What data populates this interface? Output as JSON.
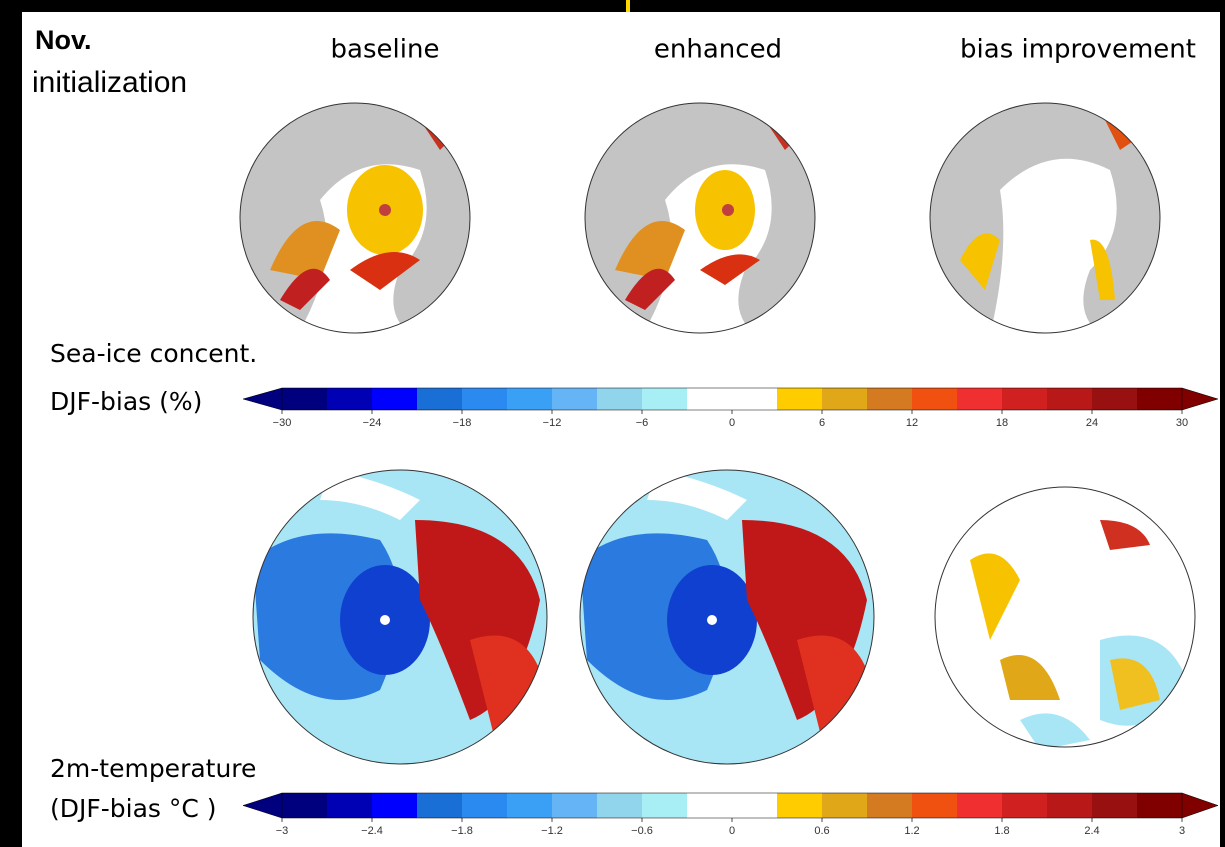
{
  "header": {
    "title": "Nov.",
    "subtitle": "initialization"
  },
  "columns": [
    "baseline",
    "enhanced",
    "bias improvement"
  ],
  "columns_highlight_color": "#e00000",
  "colorbar_colors": [
    "#00007f",
    "#0000b4",
    "#0000ff",
    "#1a6fd6",
    "#2a8af0",
    "#3aa0f5",
    "#65b4f5",
    "#90d5ec",
    "#a8eef5",
    "#ffffff",
    "#ffffff",
    "#ffcc00",
    "#e0a818",
    "#d47a20",
    "#f05010",
    "#f03030",
    "#d02020",
    "#b81818",
    "#981010",
    "#800000"
  ],
  "panels": [
    {
      "label": [
        "Sea-ice concent.",
        "DJF-bias (%)"
      ],
      "ticks": [
        "−30",
        "−24",
        "−18",
        "−12",
        "−6",
        "0",
        "6",
        "12",
        "18",
        "24",
        "30"
      ]
    },
    {
      "label": [
        "2m-temperature",
        "(DJF-bias °C )"
      ],
      "ticks": [
        "−3",
        "−2.4",
        "−1.8",
        "−1.2",
        "−0.6",
        "0",
        "0.6",
        "1.2",
        "1.8",
        "2.4",
        "3"
      ]
    }
  ]
}
